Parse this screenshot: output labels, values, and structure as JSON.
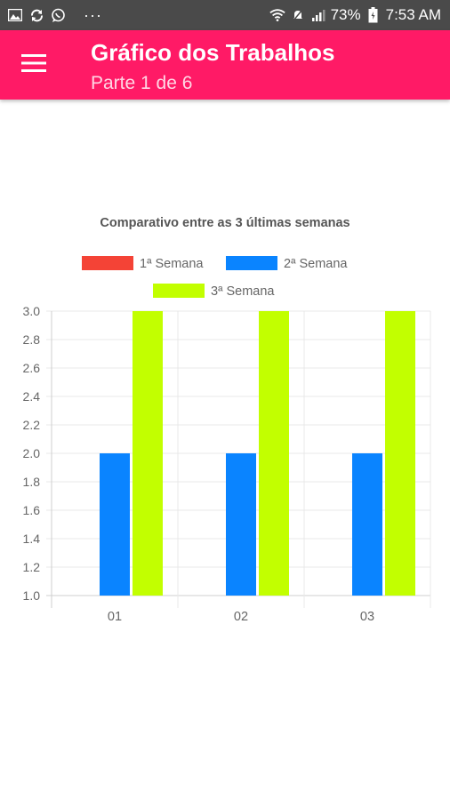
{
  "status_bar": {
    "battery": "73%",
    "time": "7:53 AM",
    "more": "···",
    "icons": [
      "gallery-icon",
      "sync-icon",
      "whatsapp-icon",
      "wifi-icon",
      "mute-icon",
      "signal-icon",
      "battery-icon"
    ]
  },
  "app_bar": {
    "title": "Gráfico dos Trabalhos",
    "subtitle": "Parte 1 de 6",
    "menu_icon": "hamburger-menu-icon",
    "background": "#ff1a66"
  },
  "chart_data": {
    "type": "bar",
    "title": "Comparativo entre as 3 últimas semanas",
    "categories": [
      "01",
      "02",
      "03"
    ],
    "series": [
      {
        "name": "1ª Semana",
        "color": "#f44336",
        "values": [
          1.0,
          1.0,
          1.0
        ]
      },
      {
        "name": "2ª Semana",
        "color": "#0a84ff",
        "values": [
          2.0,
          2.0,
          2.0
        ]
      },
      {
        "name": "3ª Semana",
        "color": "#c2ff00",
        "values": [
          3.0,
          3.0,
          3.0
        ]
      }
    ],
    "ylim": [
      1.0,
      3.0
    ],
    "yticks": [
      "1.0",
      "1.2",
      "1.4",
      "1.6",
      "1.8",
      "2.0",
      "2.2",
      "2.4",
      "2.6",
      "2.8",
      "3.0"
    ],
    "grid": true,
    "legend": "top-center"
  }
}
